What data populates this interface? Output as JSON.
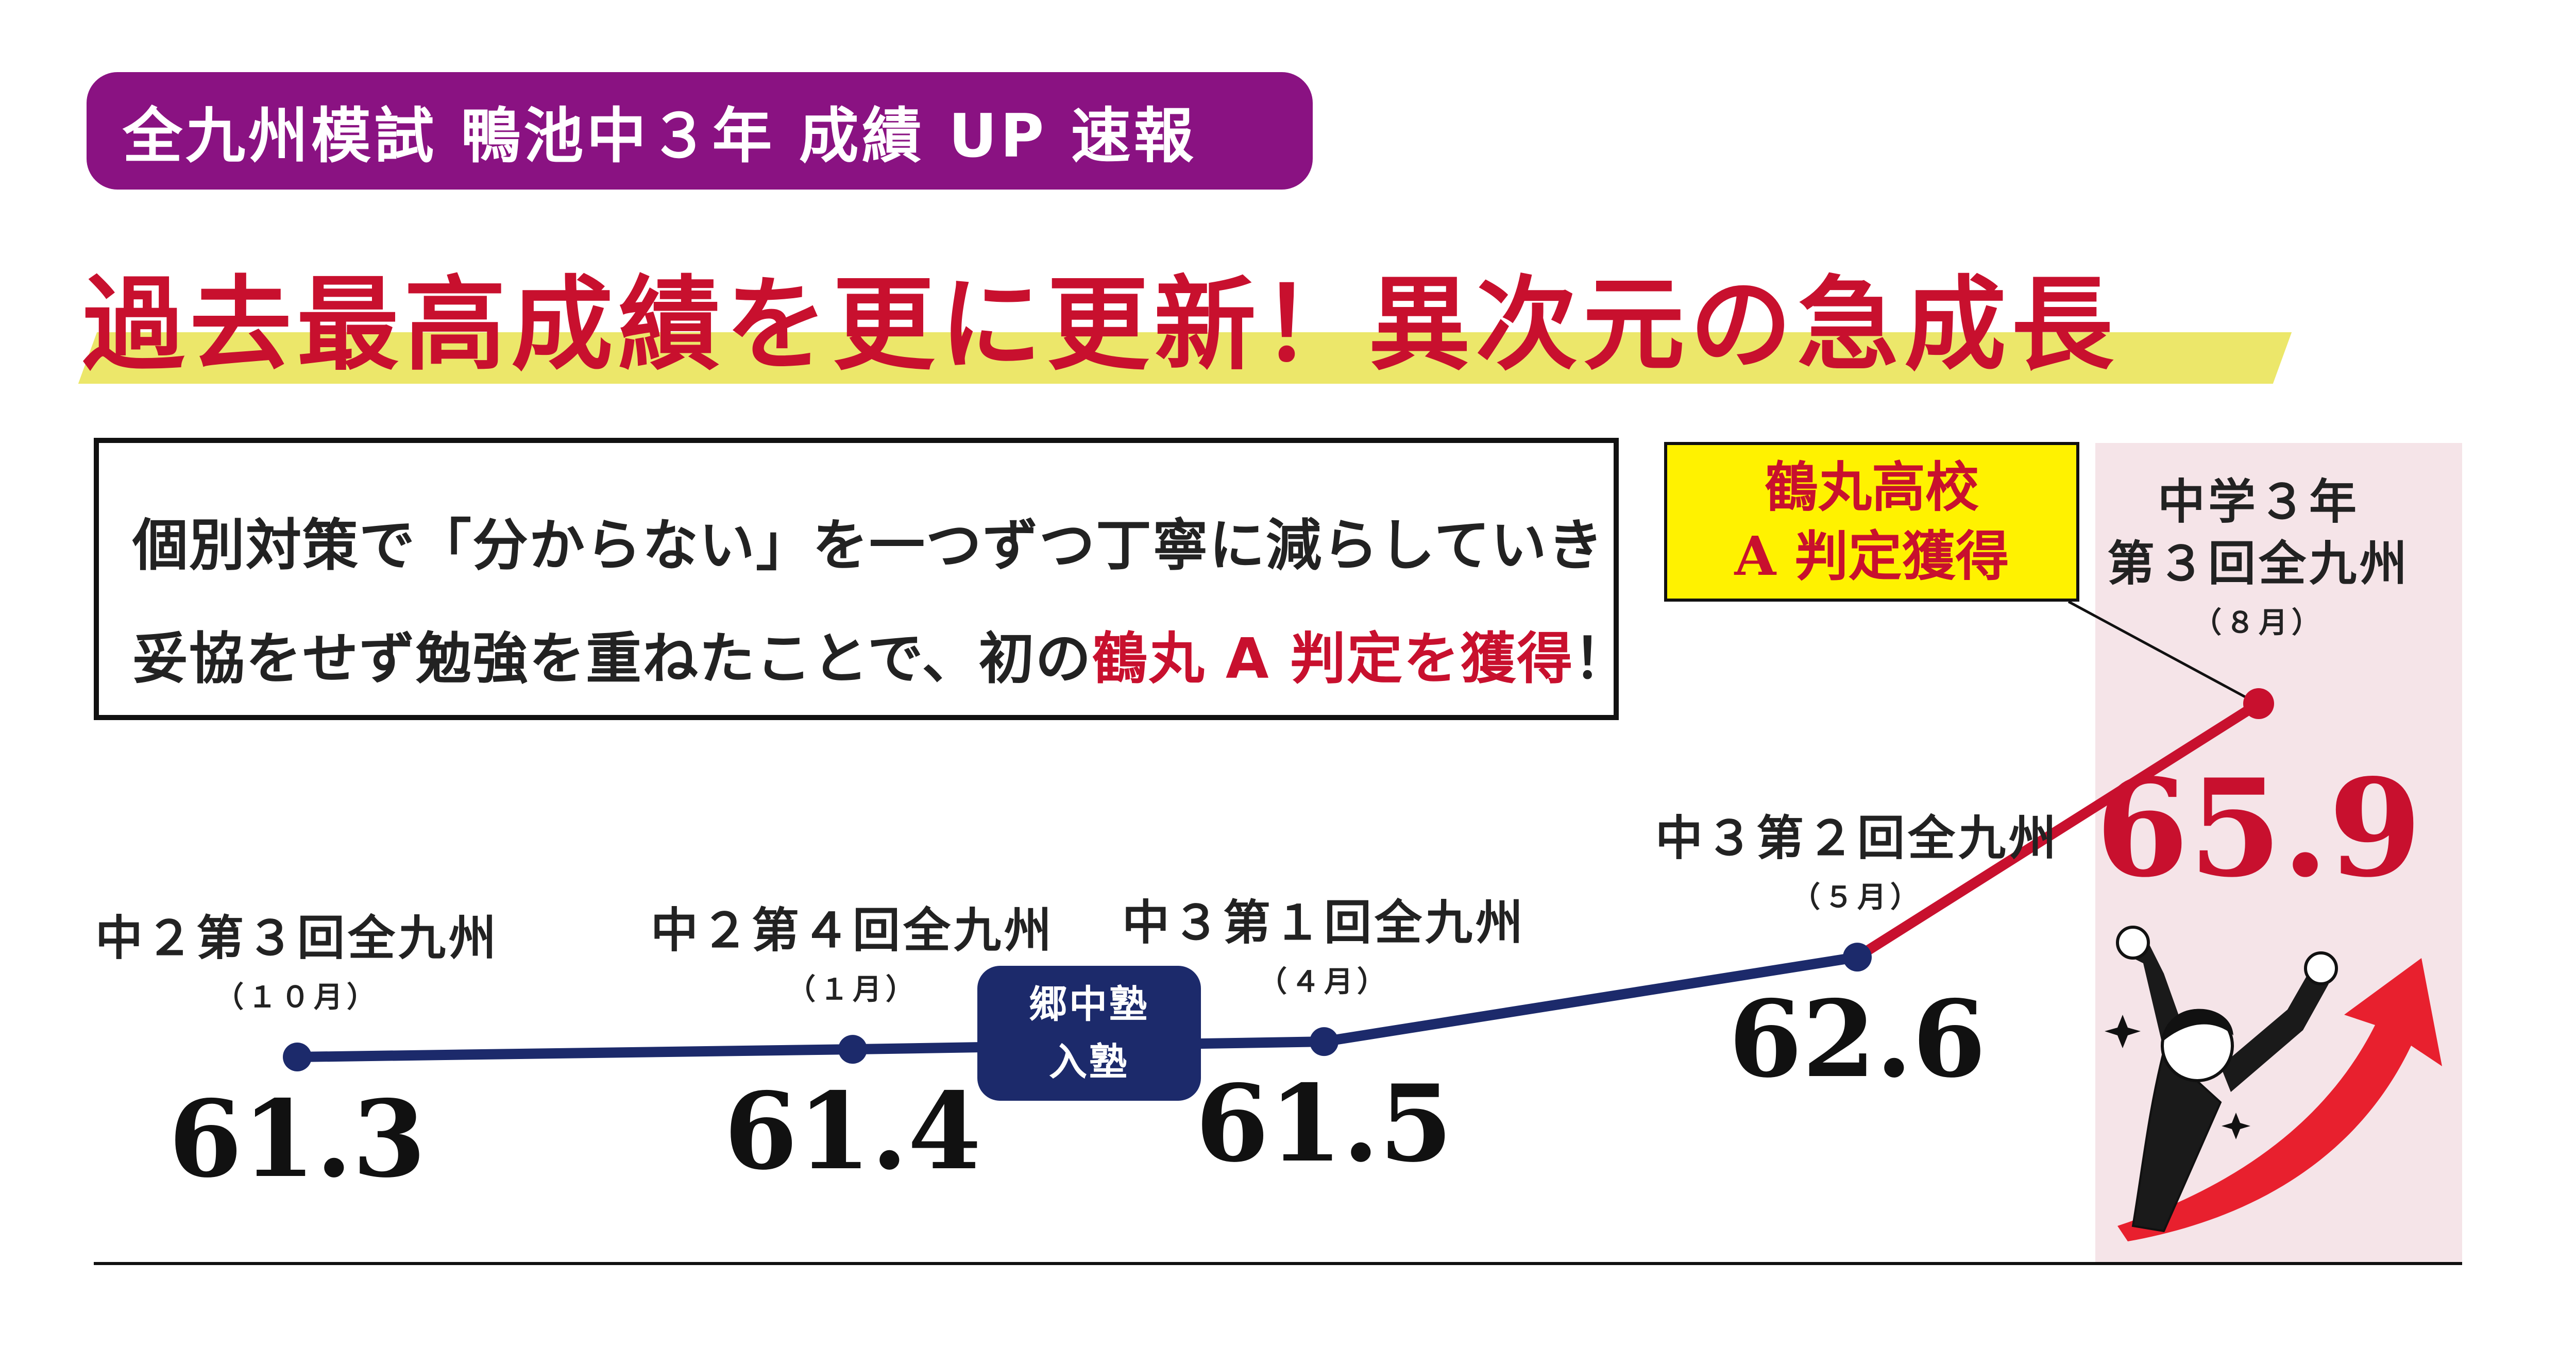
{
  "header": {
    "badge": "全九州模試 鴨池中３年 成績 UP 速報",
    "headline": "過去最高成績を更に更新！異次元の急成長"
  },
  "note": {
    "line1": "個別対策で「分からない」を一つずつ丁寧に減らしていき",
    "line2_pre": "妥協をせず勉強を重ねたことで、初の",
    "line2_highlight": "鶴丸 A 判定を獲得",
    "line2_post": "！"
  },
  "callout": {
    "line1": "鶴丸高校",
    "line2": "A 判定獲得"
  },
  "join_label": {
    "line1": "郷中塾",
    "line2": "入塾"
  },
  "colors": {
    "badge_bg": "#8a1282",
    "headline": "#c8102e",
    "headline_mark": "#ece76a",
    "series_before": "#1c2a6b",
    "series_after": "#c8102e",
    "highlight_col": "#f5e4e8",
    "callout_bg": "#fff200"
  },
  "chart_data": {
    "type": "line",
    "categories": [
      {
        "name": "中２第３回全九州",
        "month": "（１０月）"
      },
      {
        "name": "中２第４回全九州",
        "month": "（１月）"
      },
      {
        "name": "中３第１回全九州",
        "month": "（４月）"
      },
      {
        "name": "中３第２回全九州",
        "month": "（５月）"
      },
      {
        "name": "中学３年\n第３回全九州",
        "month": "（８月）"
      }
    ],
    "values": [
      61.3,
      61.4,
      61.5,
      62.6,
      65.9
    ],
    "value_labels": [
      "61.3",
      "61.4",
      "61.5",
      "62.6",
      "65.9"
    ],
    "highlight_index": 4,
    "ylim": [
      60.5,
      66.5
    ],
    "title": "",
    "xlabel": "",
    "ylabel": "",
    "grid": false
  }
}
